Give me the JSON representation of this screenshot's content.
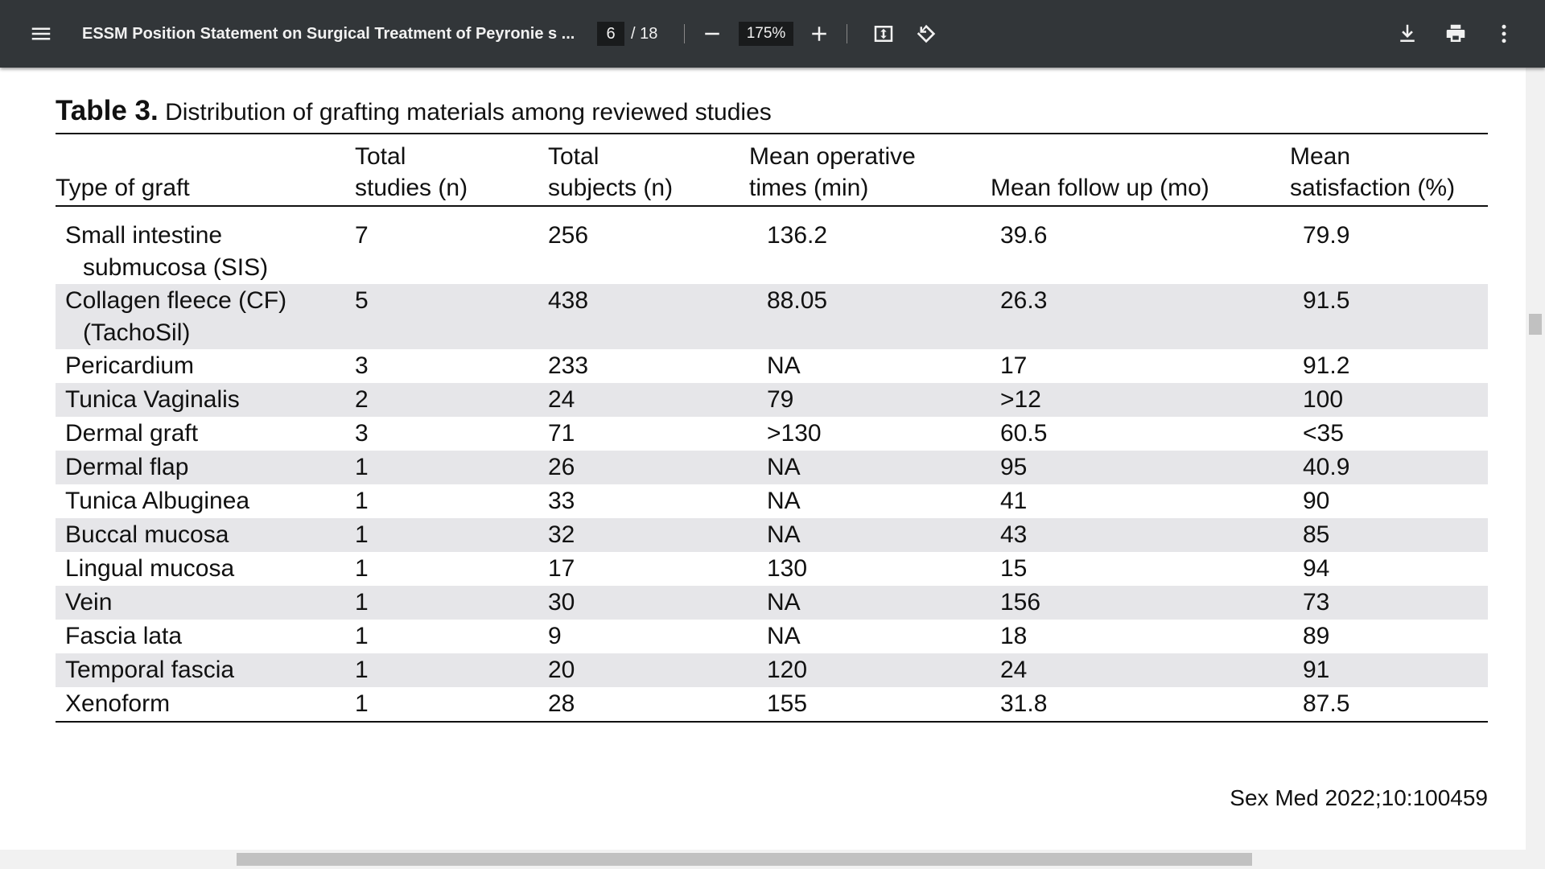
{
  "toolbar": {
    "title": "ESSM Position Statement on Surgical Treatment of Peyronie s ...",
    "page": "6",
    "page_total": "/ 18",
    "zoom": "175%"
  },
  "table": {
    "label": "Table 3.",
    "caption": "Distribution of grafting materials among reviewed studies",
    "headers": [
      [
        "Type of graft"
      ],
      [
        "Total",
        "studies (n)"
      ],
      [
        "Total",
        "subjects (n)"
      ],
      [
        "Mean operative",
        "times (min)"
      ],
      [
        "Mean follow up (mo)"
      ],
      [
        "Mean",
        "satisfaction (%)"
      ]
    ],
    "rows": [
      [
        "Small intestine submucosa (SIS)",
        "7",
        "256",
        "136.2",
        "39.6",
        "79.9"
      ],
      [
        "Collagen fleece (CF) (TachoSil)",
        "5",
        "438",
        "88.05",
        "26.3",
        "91.5"
      ],
      [
        "Pericardium",
        "3",
        "233",
        "NA",
        "17",
        "91.2"
      ],
      [
        "Tunica Vaginalis",
        "2",
        "24",
        "79",
        ">12",
        "100"
      ],
      [
        "Dermal graft",
        "3",
        "71",
        ">130",
        "60.5",
        "<35"
      ],
      [
        "Dermal flap",
        "1",
        "26",
        "NA",
        "95",
        "40.9"
      ],
      [
        "Tunica Albuginea",
        "1",
        "33",
        "NA",
        "41",
        "90"
      ],
      [
        "Buccal mucosa",
        "1",
        "32",
        "NA",
        "43",
        "85"
      ],
      [
        "Lingual mucosa",
        "1",
        "17",
        "130",
        "15",
        "94"
      ],
      [
        "Vein",
        "1",
        "30",
        "NA",
        "156",
        "73"
      ],
      [
        "Fascia lata",
        "1",
        "9",
        "NA",
        "18",
        "89"
      ],
      [
        "Temporal fascia",
        "1",
        "20",
        "120",
        "24",
        "91"
      ],
      [
        "Xenoform",
        "1",
        "28",
        "155",
        "31.8",
        "87.5"
      ]
    ]
  },
  "footer": "Sex Med 2022;10:100459"
}
